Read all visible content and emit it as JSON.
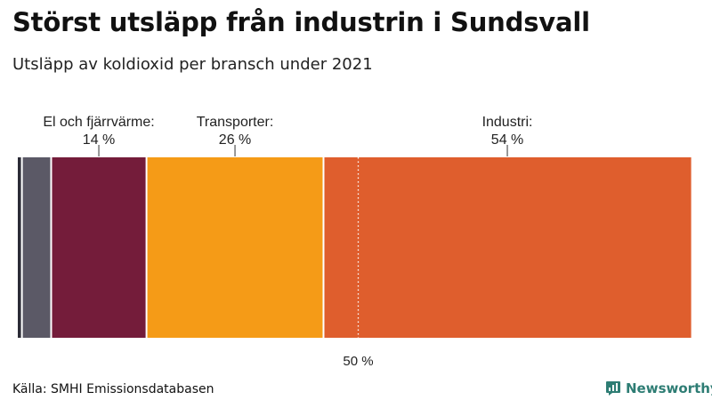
{
  "title": "Störst utsläpp från industrin i Sundsvall",
  "subtitle": "Utsläpp av koldioxid per bransch under 2021",
  "source": "Källa: SMHI Emissionsdatabasen",
  "brand": {
    "name": "Newsworthy",
    "icon": "newsworthy-logo-icon",
    "color": "#2e7d74"
  },
  "chart_data": {
    "type": "bar",
    "orientation": "horizontal-stacked",
    "title": "Störst utsläpp från industrin i Sundsvall",
    "subtitle": "Utsläpp av koldioxid per bransch under 2021",
    "unit": "%",
    "categories": [
      "",
      "",
      "El och fjärrvärme",
      "Transporter",
      "Industri"
    ],
    "values": [
      0.6,
      4.3,
      14,
      26,
      54
    ],
    "colors": [
      "#2b2b36",
      "#5b5966",
      "#741c3a",
      "#f59b17",
      "#df5e2d"
    ],
    "labels": [
      null,
      null,
      {
        "name": "El och fjärrvärme:",
        "value": "14 %"
      },
      {
        "name": "Transporter:",
        "value": "26 %"
      },
      {
        "name": "Industri:",
        "value": "54 %"
      }
    ],
    "reference_line": {
      "value": 50,
      "label": "50 %",
      "style": "dotted"
    },
    "xlim": [
      0,
      100
    ],
    "grid": false,
    "legend": "none"
  }
}
